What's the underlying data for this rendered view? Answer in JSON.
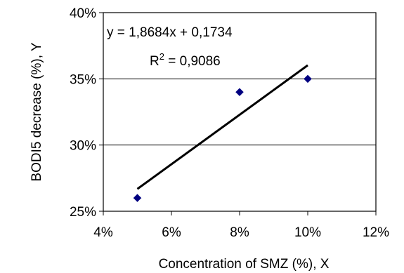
{
  "chart_data": {
    "type": "scatter",
    "title": "",
    "xlabel": "Concentration of SMZ (%), X",
    "ylabel": "BODI5 decrease (%), Y",
    "xlim": [
      0.04,
      0.12
    ],
    "ylim": [
      0.25,
      0.4
    ],
    "xticks": [
      0.04,
      0.06,
      0.08,
      0.1,
      0.12
    ],
    "xtick_labels": [
      "4%",
      "6%",
      "8%",
      "10%",
      "12%"
    ],
    "yticks": [
      0.25,
      0.3,
      0.35,
      0.4
    ],
    "ytick_labels": [
      "25%",
      "30%",
      "35%",
      "40%"
    ],
    "grid": "horizontal",
    "series": [
      {
        "x": [
          0.05,
          0.08,
          0.1
        ],
        "y": [
          0.26,
          0.34,
          0.35
        ],
        "color": "#000080",
        "marker": "diamond"
      }
    ],
    "trendline": {
      "slope": 1.8684,
      "intercept": 0.1734,
      "x_range": [
        0.05,
        0.1
      ],
      "color": "#000000",
      "equation": "y = 1,8684x + 0,1734",
      "r2_label": "R",
      "r2_sup": "2",
      "r2_value": " = 0,9086"
    }
  }
}
